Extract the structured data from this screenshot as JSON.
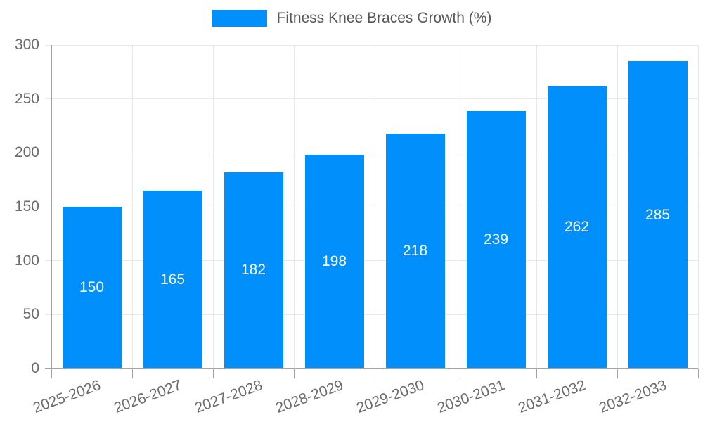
{
  "chart_data": {
    "type": "bar",
    "title": "Fitness Knee Braces Growth (%)",
    "categories": [
      "2025-2026",
      "2026-2027",
      "2027-2028",
      "2028-2029",
      "2029-2030",
      "2030-2031",
      "2031-2032",
      "2032-2033"
    ],
    "values": [
      150,
      165,
      182,
      198,
      218,
      239,
      262,
      285
    ],
    "xlabel": "",
    "ylabel": "",
    "ylim": [
      0,
      300
    ],
    "yticks": [
      0,
      50,
      100,
      150,
      200,
      250,
      300
    ],
    "grid": true,
    "legend_position": "top",
    "value_label_position": "inside-center",
    "colors": {
      "bar": "#008FFB",
      "bar_value_label": "#FFFFFF",
      "grid": "#E8E8E8",
      "axis": "#A3A3A3",
      "tick_label": "#6B6B6B",
      "legend_text": "#565656"
    }
  }
}
